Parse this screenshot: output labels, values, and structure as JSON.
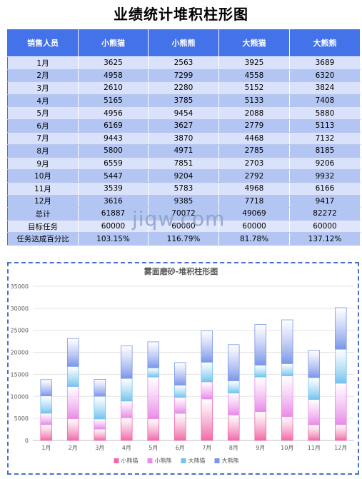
{
  "page": {
    "title": "业绩统计堆积柱形图"
  },
  "table": {
    "headers": [
      "销售人员",
      "小熊猫",
      "小熊熊",
      "大熊猫",
      "大熊熊"
    ],
    "rows": [
      [
        "1月",
        "3625",
        "2563",
        "3925",
        "3689"
      ],
      [
        "2月",
        "4958",
        "7299",
        "4558",
        "6320"
      ],
      [
        "3月",
        "2610",
        "2280",
        "5152",
        "3824"
      ],
      [
        "4月",
        "5165",
        "3785",
        "5133",
        "7408"
      ],
      [
        "5月",
        "4956",
        "9454",
        "2088",
        "5880"
      ],
      [
        "6月",
        "6169",
        "3627",
        "2779",
        "5113"
      ],
      [
        "7月",
        "9443",
        "3870",
        "4468",
        "7132"
      ],
      [
        "8月",
        "5800",
        "4971",
        "2785",
        "8185"
      ],
      [
        "9月",
        "6559",
        "7851",
        "2703",
        "9206"
      ],
      [
        "10月",
        "5447",
        "9204",
        "2792",
        "9932"
      ],
      [
        "11月",
        "3539",
        "5783",
        "4968",
        "6166"
      ],
      [
        "12月",
        "3616",
        "9385",
        "7718",
        "9417"
      ]
    ],
    "footer": [
      [
        "总计",
        "61887",
        "70072",
        "49069",
        "82272"
      ],
      [
        "目标任务",
        "60000",
        "60000",
        "60000",
        "60000"
      ],
      [
        "任务达成百分比",
        "103.15%",
        "116.79%",
        "81.78%",
        "137.12%"
      ]
    ]
  },
  "watermark": "jiqw.com",
  "colors": {
    "header_bg": "#4472e8",
    "series": [
      "#f06aa8",
      "#e98be8",
      "#74c3ef",
      "#7b96ea"
    ],
    "frame": "#4a6fd1"
  },
  "chart_data": {
    "type": "bar",
    "stacked": true,
    "title": "雾面磨砂-堆积柱形图",
    "categories": [
      "1月",
      "2月",
      "3月",
      "4月",
      "5月",
      "6月",
      "7月",
      "8月",
      "9月",
      "10月",
      "11月",
      "12月"
    ],
    "series": [
      {
        "name": "小熊猫",
        "values": [
          3625,
          4958,
          2610,
          5165,
          4956,
          6169,
          9443,
          5800,
          6559,
          5447,
          3539,
          3616
        ]
      },
      {
        "name": "小熊熊",
        "values": [
          2563,
          7299,
          2280,
          3785,
          9454,
          3627,
          3870,
          4971,
          7851,
          9204,
          5783,
          9385
        ]
      },
      {
        "name": "大熊猫",
        "values": [
          3925,
          4558,
          5152,
          5133,
          2088,
          2779,
          4468,
          2785,
          2703,
          2792,
          4968,
          7718
        ]
      },
      {
        "name": "大熊熊",
        "values": [
          3689,
          6320,
          3824,
          7408,
          5880,
          5113,
          7132,
          8185,
          9206,
          9932,
          6166,
          9417
        ]
      }
    ],
    "ylim": [
      0,
      35000
    ],
    "yticks": [
      "0",
      "5000",
      "10000",
      "15000",
      "20000",
      "25000",
      "30000",
      "35000"
    ],
    "grid": true,
    "legend": "bottom"
  }
}
